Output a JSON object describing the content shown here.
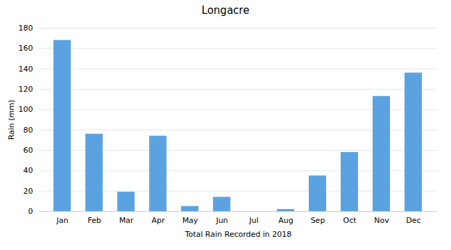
{
  "chart_data": {
    "type": "bar",
    "title": "Longacre",
    "xlabel": "Total Rain Recorded in 2018",
    "ylabel": "Rain (mm)",
    "categories": [
      "Jan",
      "Feb",
      "Mar",
      "Apr",
      "May",
      "Jun",
      "Jul",
      "Aug",
      "Sep",
      "Oct",
      "Nov",
      "Dec"
    ],
    "values": [
      168,
      76,
      19,
      74,
      5,
      14,
      0,
      2,
      35,
      58,
      113,
      136
    ],
    "color": "#5BA3E0",
    "ylim": [
      0,
      180
    ],
    "yticks": [
      0,
      20,
      40,
      60,
      80,
      100,
      120,
      140,
      160,
      180
    ],
    "grid": true
  }
}
